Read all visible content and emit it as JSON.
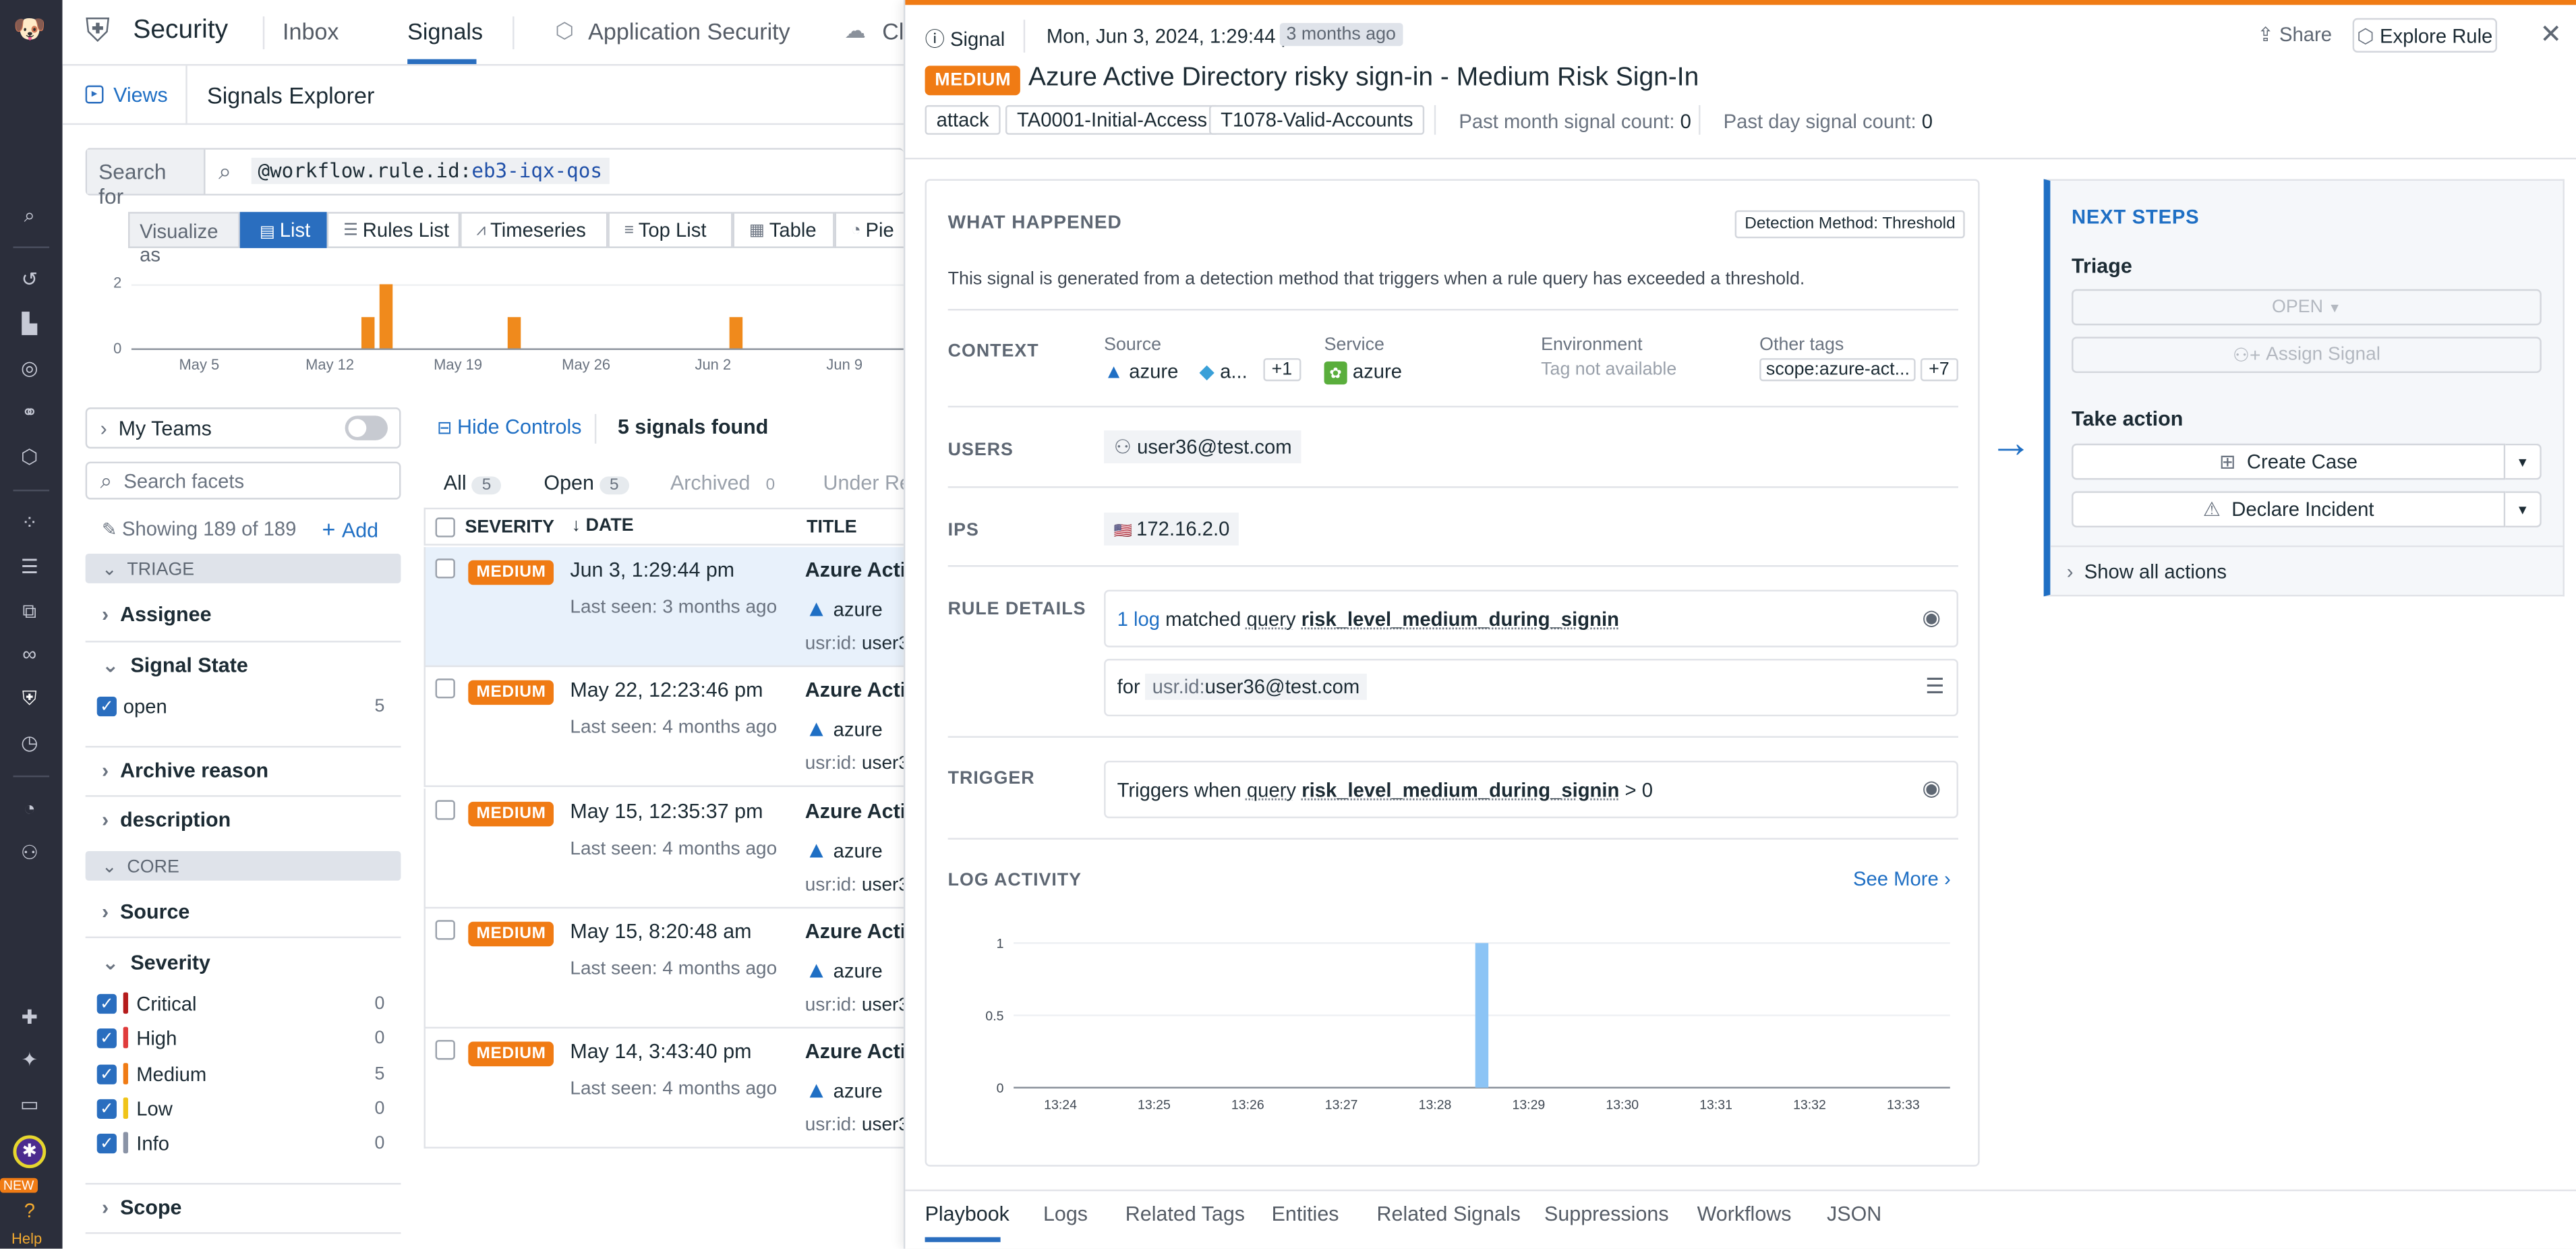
{
  "nav": {
    "help": "Help",
    "new": "NEW"
  },
  "topbar": {
    "app": "Security",
    "tabs": [
      "Inbox",
      "Signals"
    ],
    "app_sec": "Application Security",
    "cl": "Cl"
  },
  "explorer": {
    "views": "Views",
    "title": "Signals Explorer",
    "search_for": "Search for",
    "query_key": "@workflow.rule.id",
    ":": ":",
    "query_val": "eb3-iqx-qos",
    "visualize": "Visualize as",
    "viz": [
      "List",
      "Rules List",
      "Timeseries",
      "Top List",
      "Table",
      "Pie"
    ]
  },
  "histogram": {
    "y_ticks": [
      "2",
      "0"
    ],
    "x_ticks": [
      "May 5",
      "May 12",
      "May 19",
      "May 26",
      "Jun 2",
      "Jun 9"
    ]
  },
  "facets": {
    "my_teams": "My Teams",
    "search_placeholder": "Search facets",
    "showing": "Showing 189 of 189",
    "add": "Add",
    "triage": "TRIAGE",
    "assignee": "Assignee",
    "signal_state": "Signal State",
    "open": "open",
    "open_count": "5",
    "archive_reason": "Archive reason",
    "description": "description",
    "core": "CORE",
    "source": "Source",
    "severity": "Severity",
    "sev": [
      {
        "name": "Critical",
        "count": "0",
        "color": "#b51c1c"
      },
      {
        "name": "High",
        "count": "0",
        "color": "#e03c3c"
      },
      {
        "name": "Medium",
        "count": "5",
        "color": "#f07b14"
      },
      {
        "name": "Low",
        "count": "0",
        "color": "#f0c419"
      },
      {
        "name": "Info",
        "count": "0",
        "color": "#8a93a6"
      }
    ],
    "scope": "Scope"
  },
  "list": {
    "hide_controls": "Hide Controls",
    "found": "5 signals found",
    "all": "All",
    "all_n": "5",
    "open": "Open",
    "open_n": "5",
    "archived": "Archived",
    "archived_n": "0",
    "under": "Under Re",
    "cols": {
      "severity": "SEVERITY",
      "date": "DATE",
      "title": "TITLE"
    },
    "rows": [
      {
        "sev": "MEDIUM",
        "date": "Jun 3, 1:29:44 pm",
        "seen": "Last seen: 3 months ago",
        "title": "Azure Active",
        "src": "azure",
        "usr": "usr:id:",
        "u": "user3"
      },
      {
        "sev": "MEDIUM",
        "date": "May 22, 12:23:46 pm",
        "seen": "Last seen: 4 months ago",
        "title": "Azure Active",
        "src": "azure",
        "usr": "usr:id:",
        "u": "user3"
      },
      {
        "sev": "MEDIUM",
        "date": "May 15, 12:35:37 pm",
        "seen": "Last seen: 4 months ago",
        "title": "Azure Active",
        "src": "azure",
        "usr": "usr:id:",
        "u": "user3"
      },
      {
        "sev": "MEDIUM",
        "date": "May 15, 8:20:48 am",
        "seen": "Last seen: 4 months ago",
        "title": "Azure Active",
        "src": "azure",
        "usr": "usr:id:",
        "u": "user3"
      },
      {
        "sev": "MEDIUM",
        "date": "May 14, 3:43:40 pm",
        "seen": "Last seen: 4 months ago",
        "title": "Azure Active",
        "src": "azure",
        "usr": "usr:id:",
        "u": "user3"
      }
    ]
  },
  "panel": {
    "kind": "Signal",
    "ts": "Mon, Jun 3, 2024, 1:29:44 pm",
    "ago": "3 months ago",
    "share": "Share",
    "explore": "Explore Rule",
    "severity": "MEDIUM",
    "title": "Azure Active Directory risky sign-in - Medium Risk Sign-In",
    "tags": [
      "attack",
      "TA0001-Initial-Access",
      "T1078-Valid-Accounts"
    ],
    "past_month": "Past month signal count:",
    "past_month_n": "0",
    "past_day": "Past day signal count:",
    "past_day_n": "0",
    "what": "WHAT HAPPENED",
    "method": "Detection Method: Threshold",
    "desc": "This signal is generated from a detection method that triggers when a rule query has exceeded a threshold.",
    "context": "CONTEXT",
    "source_lbl": "Source",
    "src1": "azure",
    "src2": "a...",
    "src_more": "+1",
    "service_lbl": "Service",
    "service": "azure",
    "env_lbl": "Environment",
    "env": "Tag not available",
    "other_lbl": "Other tags",
    "other": "scope:azure-act...",
    "other_more": "+7",
    "users": "USERS",
    "user": "user36@test.com",
    "ips": "IPS",
    "ip": "172.16.2.0",
    "rule_details": "RULE DETAILS",
    "log_n": "1 log",
    "matched": "matched",
    "query": "query",
    "query_name": "risk_level_medium_during_signin",
    "for": "for",
    "for_key": "usr.id:",
    "for_val": "user36@test.com",
    "trigger": "TRIGGER",
    "triggers_when": "Triggers when",
    "gt": "> 0",
    "log_activity": "LOG ACTIVITY",
    "see_more": "See More",
    "bottom_tabs": [
      "Playbook",
      "Logs",
      "Related Tags",
      "Entities",
      "Related Signals",
      "Suppressions",
      "Workflows",
      "JSON"
    ]
  },
  "chart_data": {
    "type": "bar",
    "categories": [
      "13:24",
      "13:25",
      "13:26",
      "13:27",
      "13:28",
      "13:29",
      "13:30",
      "13:31",
      "13:32",
      "13:33"
    ],
    "y_ticks": [
      "1",
      "0.5",
      "0"
    ],
    "ylim": [
      0,
      1
    ],
    "bars": [
      {
        "x": "13:28:30",
        "value": 1
      }
    ],
    "color": "#8cc4f5"
  },
  "next": {
    "title": "NEXT STEPS",
    "triage": "Triage",
    "open": "OPEN",
    "assign": "Assign Signal",
    "take": "Take action",
    "case": "Create Case",
    "incident": "Declare Incident",
    "show_all": "Show all actions"
  }
}
